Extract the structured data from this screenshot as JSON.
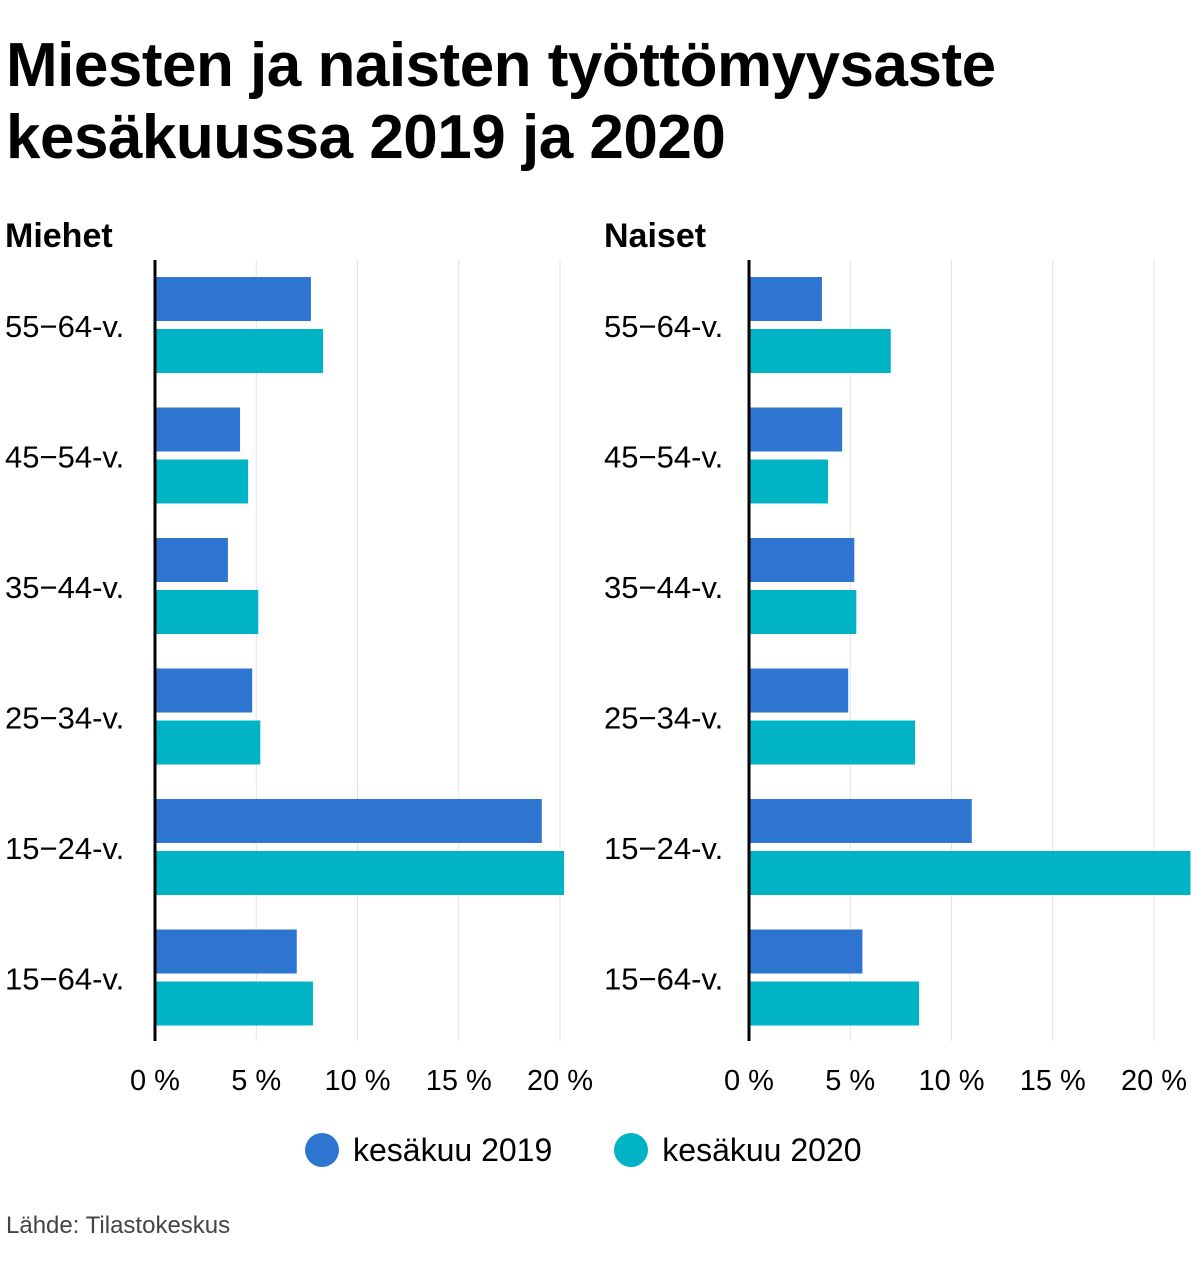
{
  "chart_data": {
    "type": "bar",
    "orientation": "horizontal",
    "title": "Miesten ja naisten työttömyysaste kesäkuussa 2019 ja 2020",
    "title_lines": [
      "Miesten ja naisten työttömyysaste",
      "kesäkuussa 2019 ja 2020"
    ],
    "source": "Lähde: Tilastokeskus",
    "unit": "%",
    "xlim": [
      0,
      20
    ],
    "xticks": [
      0,
      5,
      10,
      15,
      20
    ],
    "xtick_labels": [
      "0 %",
      "5 %",
      "10 %",
      "15 %",
      "20 %"
    ],
    "grid": true,
    "legend_position": "bottom",
    "series_names": [
      "kesäkuu 2019",
      "kesäkuu 2020"
    ],
    "series_colors": [
      "#2e75d2",
      "#00b4c5"
    ],
    "categories": [
      "55−64-v.",
      "45−54-v.",
      "35−44-v.",
      "25−34-v.",
      "15−24-v.",
      "15−64-v."
    ],
    "panels": [
      {
        "title": "Miehet",
        "series": [
          {
            "name": "kesäkuu 2019",
            "values": [
              7.7,
              4.2,
              3.6,
              4.8,
              19.1,
              7.0
            ]
          },
          {
            "name": "kesäkuu 2020",
            "values": [
              8.3,
              4.6,
              5.1,
              5.2,
              20.2,
              7.8
            ]
          }
        ]
      },
      {
        "title": "Naiset",
        "series": [
          {
            "name": "kesäkuu 2019",
            "values": [
              3.6,
              4.6,
              5.2,
              4.9,
              11.0,
              5.6
            ]
          },
          {
            "name": "kesäkuu 2020",
            "values": [
              7.0,
              3.9,
              5.3,
              8.2,
              21.8,
              8.4
            ]
          }
        ]
      }
    ]
  }
}
